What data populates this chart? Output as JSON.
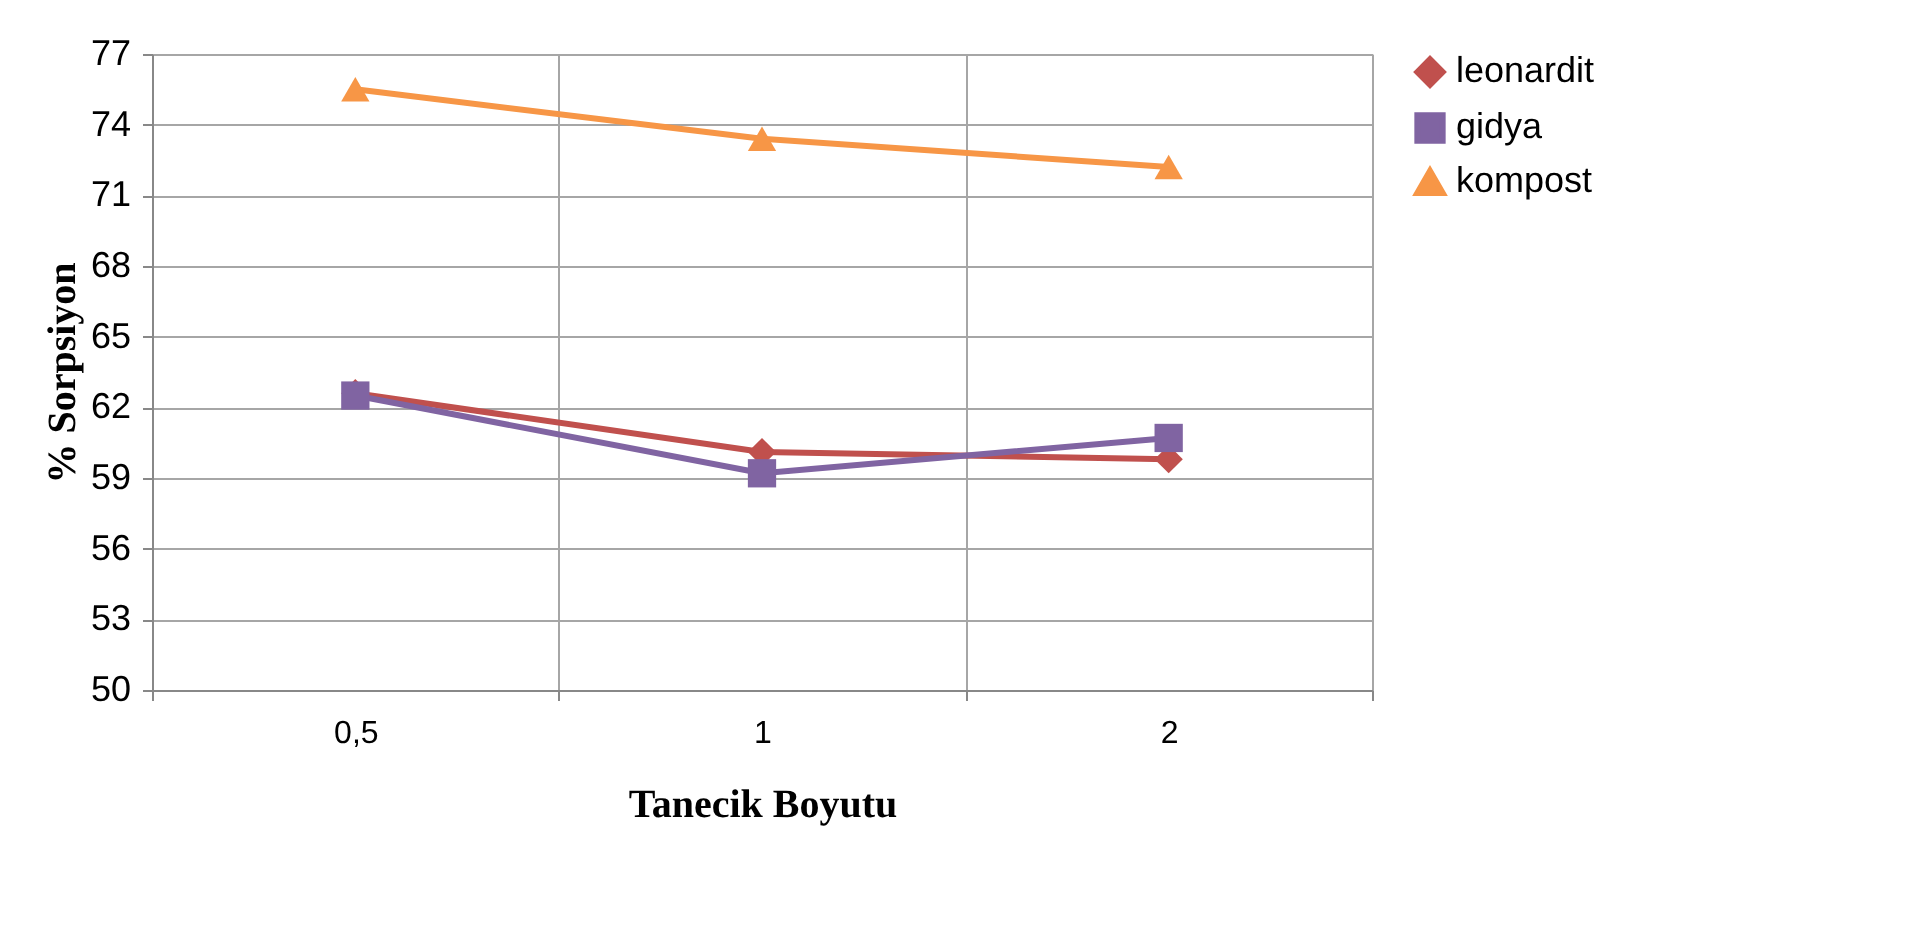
{
  "chart_data": {
    "type": "line",
    "xlabel": "Tanecik Boyutu",
    "ylabel": "% Sorpsiyon",
    "categories": [
      "0,5",
      "1",
      "2"
    ],
    "series": [
      {
        "name": "leonardit",
        "color": "#c0504d",
        "marker": "diamond",
        "values": [
          62.6,
          60.1,
          59.8
        ]
      },
      {
        "name": "gidya",
        "color": "#8064a2",
        "marker": "square",
        "values": [
          62.5,
          59.2,
          60.7
        ]
      },
      {
        "name": "kompost",
        "color": "#f79646",
        "marker": "triangle",
        "values": [
          75.5,
          73.4,
          72.2
        ]
      }
    ],
    "ylim": [
      50,
      77
    ],
    "yticks": [
      50,
      53,
      56,
      59,
      62,
      65,
      68,
      71,
      74,
      77
    ],
    "grid": true,
    "legend": "right"
  }
}
